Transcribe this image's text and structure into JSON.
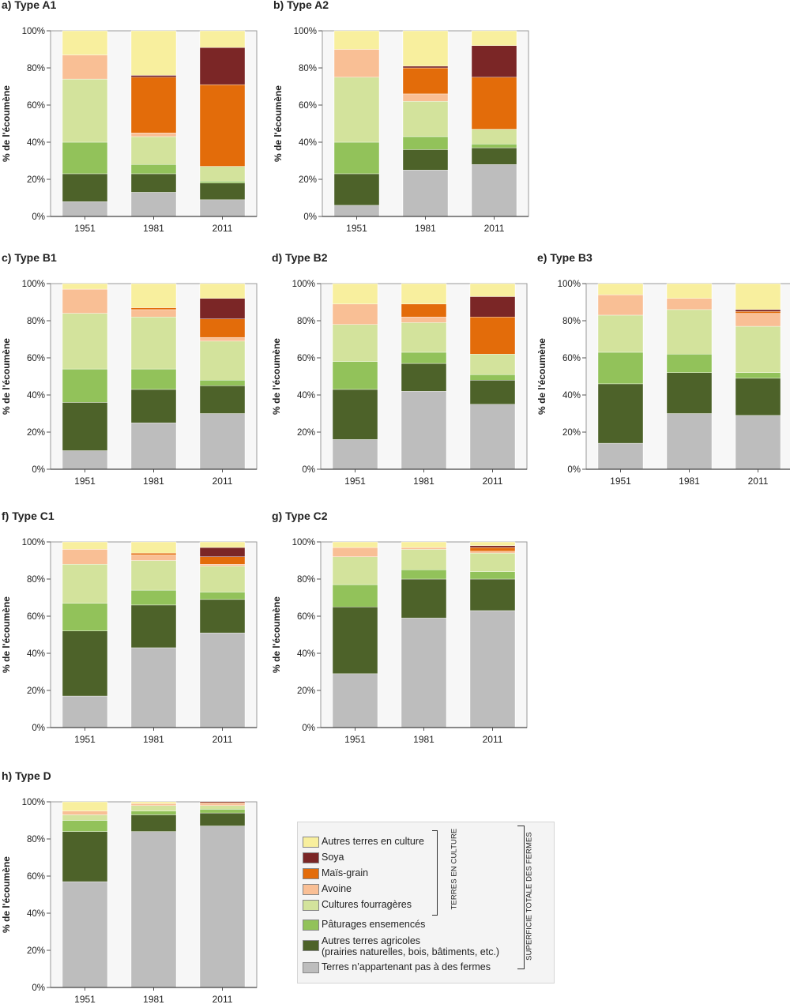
{
  "chart_data": [
    {
      "type": "bar",
      "stacked": true,
      "title": "a) Type A1",
      "categories": [
        "1951",
        "1981",
        "2011"
      ],
      "ylabel": "% de l'écoumène",
      "ylim": [
        0,
        100
      ],
      "yticks": [
        "0%",
        "20%",
        "40%",
        "60%",
        "80%",
        "100%"
      ],
      "series": [
        {
          "name": "Terres n'appartenant pas à des fermes",
          "values": [
            8,
            13,
            9
          ]
        },
        {
          "name": "Autres terres agricoles",
          "values": [
            15,
            10,
            9
          ]
        },
        {
          "name": "Pâturages ensemencés",
          "values": [
            17,
            5,
            1
          ]
        },
        {
          "name": "Cultures fourragères",
          "values": [
            34,
            15,
            8
          ]
        },
        {
          "name": "Avoine",
          "values": [
            13,
            2,
            0
          ]
        },
        {
          "name": "Maïs-grain",
          "values": [
            0,
            30,
            44
          ]
        },
        {
          "name": "Soya",
          "values": [
            0,
            1,
            20
          ]
        },
        {
          "name": "Autres terres en culture",
          "values": [
            13,
            24,
            9
          ]
        }
      ]
    },
    {
      "type": "bar",
      "stacked": true,
      "title": "b) Type A2",
      "categories": [
        "1951",
        "1981",
        "2011"
      ],
      "ylabel": "% de l'écoumène",
      "ylim": [
        0,
        100
      ],
      "yticks": [
        "0%",
        "20%",
        "40%",
        "60%",
        "80%",
        "100%"
      ],
      "series": [
        {
          "name": "Terres n'appartenant pas à des fermes",
          "values": [
            6,
            25,
            28
          ]
        },
        {
          "name": "Autres terres agricoles",
          "values": [
            17,
            11,
            9
          ]
        },
        {
          "name": "Pâturages ensemencés",
          "values": [
            17,
            7,
            2
          ]
        },
        {
          "name": "Cultures fourragères",
          "values": [
            35,
            19,
            8
          ]
        },
        {
          "name": "Avoine",
          "values": [
            15,
            4,
            0
          ]
        },
        {
          "name": "Maïs-grain",
          "values": [
            0,
            14,
            28
          ]
        },
        {
          "name": "Soya",
          "values": [
            0,
            1,
            17
          ]
        },
        {
          "name": "Autres terres en culture",
          "values": [
            10,
            19,
            8
          ]
        }
      ]
    },
    {
      "type": "bar",
      "stacked": true,
      "title": "c) Type B1",
      "categories": [
        "1951",
        "1981",
        "2011"
      ],
      "ylabel": "% de l'écoumène",
      "ylim": [
        0,
        100
      ],
      "yticks": [
        "0%",
        "20%",
        "40%",
        "60%",
        "80%",
        "100%"
      ],
      "series": [
        {
          "name": "Terres n'appartenant pas à des fermes",
          "values": [
            10,
            25,
            30
          ]
        },
        {
          "name": "Autres terres agricoles",
          "values": [
            26,
            18,
            15
          ]
        },
        {
          "name": "Pâturages ensemencés",
          "values": [
            18,
            11,
            3
          ]
        },
        {
          "name": "Cultures fourragères",
          "values": [
            30,
            28,
            21
          ]
        },
        {
          "name": "Avoine",
          "values": [
            13,
            4,
            2
          ]
        },
        {
          "name": "Maïs-grain",
          "values": [
            0,
            1,
            10
          ]
        },
        {
          "name": "Soya",
          "values": [
            0,
            0,
            11
          ]
        },
        {
          "name": "Autres terres en culture",
          "values": [
            3,
            13,
            8
          ]
        }
      ]
    },
    {
      "type": "bar",
      "stacked": true,
      "title": "d) Type B2",
      "categories": [
        "1951",
        "1981",
        "2011"
      ],
      "ylabel": "% de l'écoumène",
      "ylim": [
        0,
        100
      ],
      "yticks": [
        "0%",
        "20%",
        "40%",
        "60%",
        "80%",
        "100%"
      ],
      "series": [
        {
          "name": "Terres n'appartenant pas à des fermes",
          "values": [
            16,
            42,
            35
          ]
        },
        {
          "name": "Autres terres agricoles",
          "values": [
            27,
            15,
            13
          ]
        },
        {
          "name": "Pâturages ensemencés",
          "values": [
            15,
            6,
            3
          ]
        },
        {
          "name": "Cultures fourragères",
          "values": [
            20,
            16,
            11
          ]
        },
        {
          "name": "Avoine",
          "values": [
            11,
            3,
            0
          ]
        },
        {
          "name": "Maïs-grain",
          "values": [
            0,
            7,
            20
          ]
        },
        {
          "name": "Soya",
          "values": [
            0,
            0,
            11
          ]
        },
        {
          "name": "Autres terres en culture",
          "values": [
            11,
            11,
            7
          ]
        }
      ]
    },
    {
      "type": "bar",
      "stacked": true,
      "title": "e) Type B3",
      "categories": [
        "1951",
        "1981",
        "2011"
      ],
      "ylabel": "% de l'écoumène",
      "ylim": [
        0,
        100
      ],
      "yticks": [
        "0%",
        "20%",
        "40%",
        "60%",
        "80%",
        "100%"
      ],
      "series": [
        {
          "name": "Terres n'appartenant pas à des fermes",
          "values": [
            14,
            30,
            29
          ]
        },
        {
          "name": "Autres terres agricoles",
          "values": [
            32,
            22,
            20
          ]
        },
        {
          "name": "Pâturages ensemencés",
          "values": [
            17,
            10,
            3
          ]
        },
        {
          "name": "Cultures fourragères",
          "values": [
            20,
            24,
            25
          ]
        },
        {
          "name": "Avoine",
          "values": [
            11,
            6,
            7
          ]
        },
        {
          "name": "Maïs-grain",
          "values": [
            0,
            0,
            1
          ]
        },
        {
          "name": "Soya",
          "values": [
            0,
            0,
            1
          ]
        },
        {
          "name": "Autres terres en culture",
          "values": [
            6,
            8,
            14
          ]
        }
      ]
    },
    {
      "type": "bar",
      "stacked": true,
      "title": "f) Type C1",
      "categories": [
        "1951",
        "1981",
        "2011"
      ],
      "ylabel": "% de l'écoumène",
      "ylim": [
        0,
        100
      ],
      "yticks": [
        "0%",
        "20%",
        "40%",
        "60%",
        "80%",
        "100%"
      ],
      "series": [
        {
          "name": "Terres n'appartenant pas à des fermes",
          "values": [
            17,
            43,
            51
          ]
        },
        {
          "name": "Autres terres agricoles",
          "values": [
            35,
            23,
            18
          ]
        },
        {
          "name": "Pâturages ensemencés",
          "values": [
            15,
            8,
            4
          ]
        },
        {
          "name": "Cultures fourragères",
          "values": [
            21,
            16,
            14
          ]
        },
        {
          "name": "Avoine",
          "values": [
            8,
            3,
            1
          ]
        },
        {
          "name": "Maïs-grain",
          "values": [
            0,
            1,
            4
          ]
        },
        {
          "name": "Soya",
          "values": [
            0,
            0,
            5
          ]
        },
        {
          "name": "Autres terres en culture",
          "values": [
            4,
            6,
            3
          ]
        }
      ]
    },
    {
      "type": "bar",
      "stacked": true,
      "title": "g) Type C2",
      "categories": [
        "1951",
        "1981",
        "2011"
      ],
      "ylabel": "% de l'écoumène",
      "ylim": [
        0,
        100
      ],
      "yticks": [
        "0%",
        "20%",
        "40%",
        "60%",
        "80%",
        "100%"
      ],
      "series": [
        {
          "name": "Terres n'appartenant pas à des fermes",
          "values": [
            29,
            59,
            63
          ]
        },
        {
          "name": "Autres terres agricoles",
          "values": [
            36,
            21,
            17
          ]
        },
        {
          "name": "Pâturages ensemencés",
          "values": [
            12,
            5,
            4
          ]
        },
        {
          "name": "Cultures fourragères",
          "values": [
            15,
            11,
            10
          ]
        },
        {
          "name": "Avoine",
          "values": [
            5,
            1,
            1
          ]
        },
        {
          "name": "Maïs-grain",
          "values": [
            0,
            0,
            2
          ]
        },
        {
          "name": "Soya",
          "values": [
            0,
            0,
            1
          ]
        },
        {
          "name": "Autres terres en culture",
          "values": [
            3,
            3,
            2
          ]
        }
      ]
    },
    {
      "type": "bar",
      "stacked": true,
      "title": "h) Type D",
      "categories": [
        "1951",
        "1981",
        "2011"
      ],
      "ylabel": "% de l'écoumène",
      "ylim": [
        0,
        100
      ],
      "yticks": [
        "0%",
        "20%",
        "40%",
        "60%",
        "80%",
        "100%"
      ],
      "series": [
        {
          "name": "Terres n'appartenant pas à des fermes",
          "values": [
            57,
            84,
            87
          ]
        },
        {
          "name": "Autres terres agricoles",
          "values": [
            27,
            9,
            7
          ]
        },
        {
          "name": "Pâturages ensemencés",
          "values": [
            6,
            2,
            2
          ]
        },
        {
          "name": "Cultures fourragères",
          "values": [
            3,
            3,
            2
          ]
        },
        {
          "name": "Avoine",
          "values": [
            2,
            1,
            1
          ]
        },
        {
          "name": "Maïs-grain",
          "values": [
            0,
            0,
            0.5
          ]
        },
        {
          "name": "Soya",
          "values": [
            0,
            0,
            0.5
          ]
        },
        {
          "name": "Autres terres en culture",
          "values": [
            5,
            1,
            0
          ]
        }
      ]
    }
  ],
  "colors": {
    "Terres n'appartenant pas à des fermes": "#bdbdbd",
    "Autres terres agricoles": "#4d6229",
    "Pâturages ensemencés": "#92c25a",
    "Cultures fourragères": "#d3e39c",
    "Avoine": "#f9bf95",
    "Maïs-grain": "#e36c0a",
    "Soya": "#7b2626",
    "Autres terres en culture": "#f8ef9e"
  },
  "legend": {
    "items": [
      {
        "label": "Autres terres en culture",
        "color": "#f8ef9e"
      },
      {
        "label": "Soya",
        "color": "#7b2626"
      },
      {
        "label": "Maïs-grain",
        "color": "#e36c0a"
      },
      {
        "label": "Avoine",
        "color": "#f9bf95"
      },
      {
        "label": "Cultures fourragères",
        "color": "#d3e39c"
      },
      {
        "label": "Pâturages ensemencés",
        "color": "#92c25a"
      },
      {
        "label": "Autres terres agricoles\n(prairies naturelles, bois, bâtiments, etc.)",
        "color": "#4d6229"
      },
      {
        "label": "Terres n’appartenant pas à des fermes",
        "color": "#bdbdbd"
      }
    ],
    "bracket_inner": "TERRES EN CULTURE",
    "bracket_outer": "SUPERFICIE TOTALE DES FERMES"
  }
}
